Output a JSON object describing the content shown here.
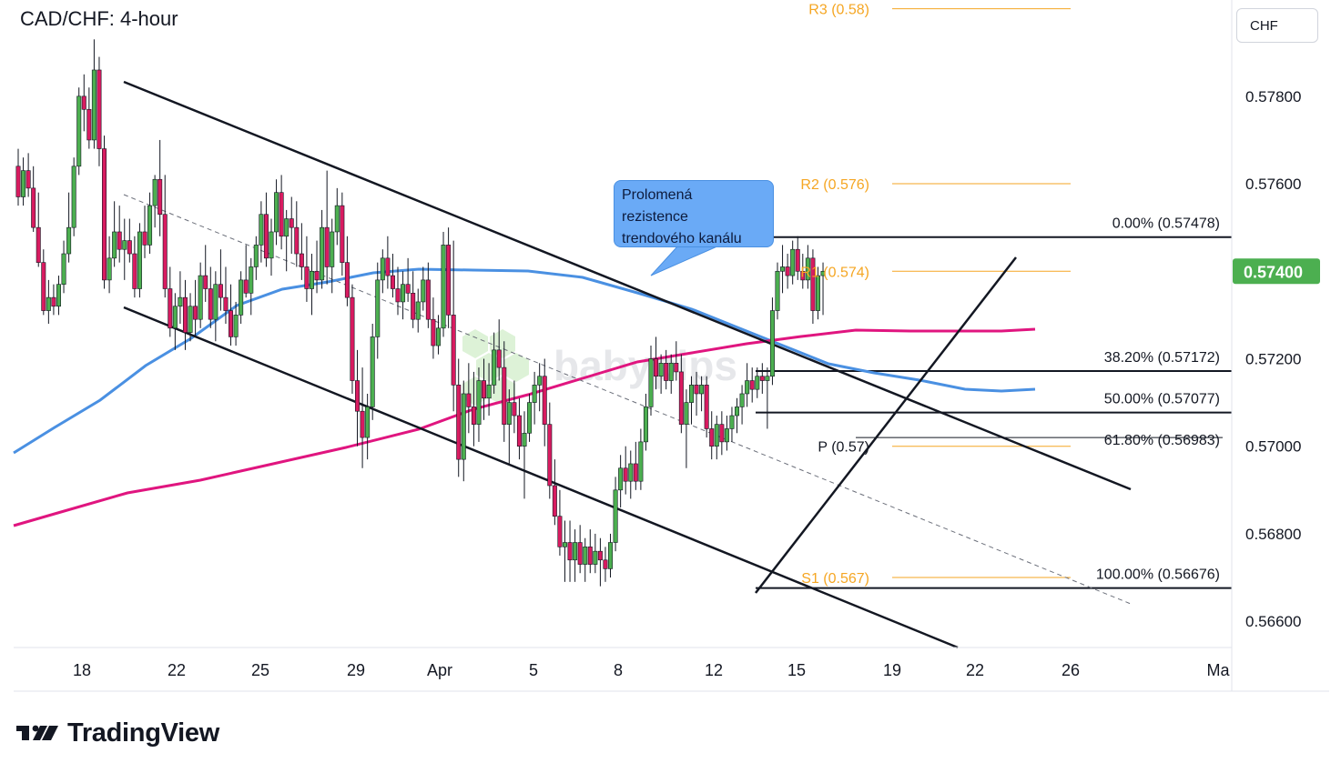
{
  "header": {
    "title": "CAD/CHF: 4-hour"
  },
  "currency_box": {
    "label": "CHF"
  },
  "callout": {
    "lines": [
      "Prolomená",
      "rezistence",
      "trendového kanálu"
    ]
  },
  "brand": {
    "name": "TradingView"
  },
  "watermark": {
    "text": "babypips"
  },
  "colors": {
    "up": "#26a69a",
    "up_fill": "#4caf50",
    "down": "#e91e63",
    "down_fill": "#d81b60",
    "ma_blue": "#4a90e2",
    "ma_pink": "#e0157f",
    "pivot_orange": "#f5a623",
    "fib_line": "#131722",
    "current_price_bg": "#4caf50"
  },
  "chart_data": {
    "type": "candlestick",
    "title": "CAD/CHF: 4-hour",
    "ylim": [
      0.5654,
      0.5802
    ],
    "y_ticks": [
      "0.56600",
      "0.56800",
      "0.57000",
      "0.57200",
      "0.57400",
      "0.57600",
      "0.57800"
    ],
    "x_ticks": [
      "18",
      "22",
      "25",
      "29",
      "Apr",
      "5",
      "8",
      "12",
      "15",
      "19",
      "22",
      "26",
      "Ma"
    ],
    "current_price": "0.57400",
    "pivot_levels": [
      {
        "label": "R3 (0.58)",
        "value": 0.58
      },
      {
        "label": "R2 (0.576)",
        "value": 0.576
      },
      {
        "label": "R1 (0.574)",
        "value": 0.574
      },
      {
        "label": "P (0.57)",
        "value": 0.57
      },
      {
        "label": "S1 (0.567)",
        "value": 0.567
      }
    ],
    "fib_levels": [
      {
        "label": "0.00% (0.57478)",
        "value": 0.57478
      },
      {
        "label": "38.20% (0.57172)",
        "value": 0.57172
      },
      {
        "label": "50.00% (0.57077)",
        "value": 0.57077
      },
      {
        "label": "61.80% (0.56983)",
        "value": 0.56983
      },
      {
        "label": "100.00% (0.56676)",
        "value": 0.56676
      }
    ],
    "candles": [
      {
        "o": 0.5764,
        "h": 0.5768,
        "l": 0.5755,
        "c": 0.5757
      },
      {
        "o": 0.5757,
        "h": 0.5766,
        "l": 0.5755,
        "c": 0.5763
      },
      {
        "o": 0.5763,
        "h": 0.5767,
        "l": 0.5757,
        "c": 0.5759
      },
      {
        "o": 0.5759,
        "h": 0.5764,
        "l": 0.5749,
        "c": 0.575
      },
      {
        "o": 0.575,
        "h": 0.5758,
        "l": 0.5741,
        "c": 0.5742
      },
      {
        "o": 0.5742,
        "h": 0.5745,
        "l": 0.573,
        "c": 0.5731
      },
      {
        "o": 0.5731,
        "h": 0.5738,
        "l": 0.5728,
        "c": 0.5734
      },
      {
        "o": 0.5734,
        "h": 0.5737,
        "l": 0.573,
        "c": 0.5732
      },
      {
        "o": 0.5732,
        "h": 0.5739,
        "l": 0.573,
        "c": 0.5737
      },
      {
        "o": 0.5737,
        "h": 0.5747,
        "l": 0.5735,
        "c": 0.5744
      },
      {
        "o": 0.5744,
        "h": 0.5758,
        "l": 0.5742,
        "c": 0.575
      },
      {
        "o": 0.575,
        "h": 0.5766,
        "l": 0.5748,
        "c": 0.5764
      },
      {
        "o": 0.5764,
        "h": 0.5782,
        "l": 0.5762,
        "c": 0.578
      },
      {
        "o": 0.578,
        "h": 0.5785,
        "l": 0.5772,
        "c": 0.5777
      },
      {
        "o": 0.5777,
        "h": 0.5782,
        "l": 0.5768,
        "c": 0.577
      },
      {
        "o": 0.577,
        "h": 0.5793,
        "l": 0.5768,
        "c": 0.5786
      },
      {
        "o": 0.5786,
        "h": 0.5789,
        "l": 0.5764,
        "c": 0.5768
      },
      {
        "o": 0.5768,
        "h": 0.5771,
        "l": 0.5736,
        "c": 0.5738
      },
      {
        "o": 0.5738,
        "h": 0.5748,
        "l": 0.5735,
        "c": 0.5743
      },
      {
        "o": 0.5743,
        "h": 0.5756,
        "l": 0.5741,
        "c": 0.5749
      },
      {
        "o": 0.5749,
        "h": 0.5755,
        "l": 0.5742,
        "c": 0.5745
      },
      {
        "o": 0.5745,
        "h": 0.5752,
        "l": 0.5738,
        "c": 0.5747
      },
      {
        "o": 0.5747,
        "h": 0.5752,
        "l": 0.5742,
        "c": 0.5744
      },
      {
        "o": 0.5744,
        "h": 0.5748,
        "l": 0.5734,
        "c": 0.5736
      },
      {
        "o": 0.5736,
        "h": 0.5751,
        "l": 0.5734,
        "c": 0.5749
      },
      {
        "o": 0.5749,
        "h": 0.5755,
        "l": 0.5743,
        "c": 0.5746
      },
      {
        "o": 0.5746,
        "h": 0.5758,
        "l": 0.5744,
        "c": 0.5755
      },
      {
        "o": 0.5755,
        "h": 0.5762,
        "l": 0.575,
        "c": 0.5761
      },
      {
        "o": 0.5761,
        "h": 0.577,
        "l": 0.5748,
        "c": 0.5753
      },
      {
        "o": 0.5753,
        "h": 0.5762,
        "l": 0.5734,
        "c": 0.5736
      },
      {
        "o": 0.5736,
        "h": 0.5741,
        "l": 0.5725,
        "c": 0.5727
      },
      {
        "o": 0.5727,
        "h": 0.5735,
        "l": 0.5722,
        "c": 0.5732
      },
      {
        "o": 0.5732,
        "h": 0.574,
        "l": 0.5728,
        "c": 0.5734
      },
      {
        "o": 0.5734,
        "h": 0.5738,
        "l": 0.5722,
        "c": 0.5726
      },
      {
        "o": 0.5726,
        "h": 0.5735,
        "l": 0.5724,
        "c": 0.5732
      },
      {
        "o": 0.5732,
        "h": 0.5738,
        "l": 0.5725,
        "c": 0.5729
      },
      {
        "o": 0.5729,
        "h": 0.5742,
        "l": 0.5727,
        "c": 0.5739
      },
      {
        "o": 0.5739,
        "h": 0.5746,
        "l": 0.5733,
        "c": 0.5736
      },
      {
        "o": 0.5736,
        "h": 0.5741,
        "l": 0.5727,
        "c": 0.5729
      },
      {
        "o": 0.5729,
        "h": 0.574,
        "l": 0.5724,
        "c": 0.5737
      },
      {
        "o": 0.5737,
        "h": 0.5745,
        "l": 0.5731,
        "c": 0.5734
      },
      {
        "o": 0.5734,
        "h": 0.5741,
        "l": 0.5728,
        "c": 0.5731
      },
      {
        "o": 0.5731,
        "h": 0.5737,
        "l": 0.5723,
        "c": 0.5725
      },
      {
        "o": 0.5725,
        "h": 0.5733,
        "l": 0.5723,
        "c": 0.573
      },
      {
        "o": 0.573,
        "h": 0.574,
        "l": 0.5728,
        "c": 0.5738
      },
      {
        "o": 0.5738,
        "h": 0.5746,
        "l": 0.5734,
        "c": 0.5735
      },
      {
        "o": 0.5735,
        "h": 0.5743,
        "l": 0.573,
        "c": 0.5741
      },
      {
        "o": 0.5741,
        "h": 0.5748,
        "l": 0.5738,
        "c": 0.5746
      },
      {
        "o": 0.5746,
        "h": 0.5756,
        "l": 0.5742,
        "c": 0.5753
      },
      {
        "o": 0.5753,
        "h": 0.5758,
        "l": 0.5741,
        "c": 0.5743
      },
      {
        "o": 0.5743,
        "h": 0.5752,
        "l": 0.5739,
        "c": 0.5749
      },
      {
        "o": 0.5749,
        "h": 0.5761,
        "l": 0.5746,
        "c": 0.5758
      },
      {
        "o": 0.5758,
        "h": 0.5762,
        "l": 0.5745,
        "c": 0.5748
      },
      {
        "o": 0.5748,
        "h": 0.5754,
        "l": 0.574,
        "c": 0.5752
      },
      {
        "o": 0.5752,
        "h": 0.5757,
        "l": 0.5744,
        "c": 0.575
      },
      {
        "o": 0.575,
        "h": 0.5756,
        "l": 0.5741,
        "c": 0.5744
      },
      {
        "o": 0.5744,
        "h": 0.5751,
        "l": 0.5738,
        "c": 0.5741
      },
      {
        "o": 0.5741,
        "h": 0.5748,
        "l": 0.5733,
        "c": 0.5736
      },
      {
        "o": 0.5736,
        "h": 0.5744,
        "l": 0.573,
        "c": 0.574
      },
      {
        "o": 0.574,
        "h": 0.5747,
        "l": 0.5735,
        "c": 0.5738
      },
      {
        "o": 0.5738,
        "h": 0.5754,
        "l": 0.5736,
        "c": 0.575
      },
      {
        "o": 0.575,
        "h": 0.5763,
        "l": 0.5737,
        "c": 0.5741
      },
      {
        "o": 0.5741,
        "h": 0.5752,
        "l": 0.5735,
        "c": 0.5749
      },
      {
        "o": 0.5749,
        "h": 0.5759,
        "l": 0.5746,
        "c": 0.5755
      },
      {
        "o": 0.5755,
        "h": 0.5758,
        "l": 0.5739,
        "c": 0.5742
      },
      {
        "o": 0.5742,
        "h": 0.5748,
        "l": 0.5732,
        "c": 0.5734
      },
      {
        "o": 0.5734,
        "h": 0.5737,
        "l": 0.5712,
        "c": 0.5715
      },
      {
        "o": 0.5715,
        "h": 0.5722,
        "l": 0.57,
        "c": 0.5708
      },
      {
        "o": 0.5708,
        "h": 0.5718,
        "l": 0.5695,
        "c": 0.5702
      },
      {
        "o": 0.5702,
        "h": 0.5712,
        "l": 0.5697,
        "c": 0.5709
      },
      {
        "o": 0.5709,
        "h": 0.5728,
        "l": 0.5706,
        "c": 0.5725
      },
      {
        "o": 0.5725,
        "h": 0.5742,
        "l": 0.572,
        "c": 0.5738
      },
      {
        "o": 0.5738,
        "h": 0.5745,
        "l": 0.5735,
        "c": 0.5743
      },
      {
        "o": 0.5743,
        "h": 0.5748,
        "l": 0.5736,
        "c": 0.5739
      },
      {
        "o": 0.5739,
        "h": 0.5744,
        "l": 0.5734,
        "c": 0.5736
      },
      {
        "o": 0.5736,
        "h": 0.5741,
        "l": 0.573,
        "c": 0.5733
      },
      {
        "o": 0.5733,
        "h": 0.574,
        "l": 0.5729,
        "c": 0.5737
      },
      {
        "o": 0.5737,
        "h": 0.5743,
        "l": 0.5733,
        "c": 0.5735
      },
      {
        "o": 0.5735,
        "h": 0.574,
        "l": 0.5727,
        "c": 0.5729
      },
      {
        "o": 0.5729,
        "h": 0.5736,
        "l": 0.5726,
        "c": 0.5733
      },
      {
        "o": 0.5733,
        "h": 0.5741,
        "l": 0.5731,
        "c": 0.5738
      },
      {
        "o": 0.5738,
        "h": 0.5742,
        "l": 0.5727,
        "c": 0.5729
      },
      {
        "o": 0.5729,
        "h": 0.5734,
        "l": 0.572,
        "c": 0.5723
      },
      {
        "o": 0.5723,
        "h": 0.573,
        "l": 0.5721,
        "c": 0.5727
      },
      {
        "o": 0.5727,
        "h": 0.5749,
        "l": 0.5725,
        "c": 0.5746
      },
      {
        "o": 0.5746,
        "h": 0.575,
        "l": 0.5727,
        "c": 0.573
      },
      {
        "o": 0.573,
        "h": 0.5747,
        "l": 0.5708,
        "c": 0.5714
      },
      {
        "o": 0.5714,
        "h": 0.572,
        "l": 0.5693,
        "c": 0.5697
      },
      {
        "o": 0.5697,
        "h": 0.5715,
        "l": 0.5692,
        "c": 0.5712
      },
      {
        "o": 0.5712,
        "h": 0.5719,
        "l": 0.5703,
        "c": 0.5709
      },
      {
        "o": 0.5709,
        "h": 0.5717,
        "l": 0.57,
        "c": 0.5705
      },
      {
        "o": 0.5705,
        "h": 0.5718,
        "l": 0.5701,
        "c": 0.5715
      },
      {
        "o": 0.5715,
        "h": 0.572,
        "l": 0.5706,
        "c": 0.5711
      },
      {
        "o": 0.5711,
        "h": 0.5719,
        "l": 0.5707,
        "c": 0.5714
      },
      {
        "o": 0.5714,
        "h": 0.5726,
        "l": 0.5712,
        "c": 0.5722
      },
      {
        "o": 0.5722,
        "h": 0.5729,
        "l": 0.5715,
        "c": 0.5718
      },
      {
        "o": 0.5718,
        "h": 0.5724,
        "l": 0.5701,
        "c": 0.5705
      },
      {
        "o": 0.5705,
        "h": 0.5713,
        "l": 0.5696,
        "c": 0.571
      },
      {
        "o": 0.571,
        "h": 0.5715,
        "l": 0.5703,
        "c": 0.5707
      },
      {
        "o": 0.5707,
        "h": 0.5711,
        "l": 0.5697,
        "c": 0.57
      },
      {
        "o": 0.57,
        "h": 0.5708,
        "l": 0.5688,
        "c": 0.5703
      },
      {
        "o": 0.5703,
        "h": 0.5712,
        "l": 0.5701,
        "c": 0.571
      },
      {
        "o": 0.571,
        "h": 0.5717,
        "l": 0.5705,
        "c": 0.5714
      },
      {
        "o": 0.5714,
        "h": 0.5719,
        "l": 0.5708,
        "c": 0.5716
      },
      {
        "o": 0.5716,
        "h": 0.572,
        "l": 0.57,
        "c": 0.5705
      },
      {
        "o": 0.5705,
        "h": 0.571,
        "l": 0.5688,
        "c": 0.5691
      },
      {
        "o": 0.5691,
        "h": 0.5697,
        "l": 0.5682,
        "c": 0.5684
      },
      {
        "o": 0.5684,
        "h": 0.569,
        "l": 0.5675,
        "c": 0.5677
      },
      {
        "o": 0.5677,
        "h": 0.5683,
        "l": 0.5669,
        "c": 0.5678
      },
      {
        "o": 0.5678,
        "h": 0.5683,
        "l": 0.5669,
        "c": 0.5674
      },
      {
        "o": 0.5674,
        "h": 0.5681,
        "l": 0.5669,
        "c": 0.5678
      },
      {
        "o": 0.5678,
        "h": 0.5682,
        "l": 0.5671,
        "c": 0.5673
      },
      {
        "o": 0.5673,
        "h": 0.5679,
        "l": 0.5669,
        "c": 0.5677
      },
      {
        "o": 0.5677,
        "h": 0.5681,
        "l": 0.5671,
        "c": 0.5673
      },
      {
        "o": 0.5673,
        "h": 0.568,
        "l": 0.5671,
        "c": 0.5676
      },
      {
        "o": 0.5676,
        "h": 0.5679,
        "l": 0.5668,
        "c": 0.5674
      },
      {
        "o": 0.5674,
        "h": 0.5677,
        "l": 0.5669,
        "c": 0.5672
      },
      {
        "o": 0.5672,
        "h": 0.568,
        "l": 0.567,
        "c": 0.5678
      },
      {
        "o": 0.5678,
        "h": 0.5693,
        "l": 0.5676,
        "c": 0.569
      },
      {
        "o": 0.569,
        "h": 0.5698,
        "l": 0.5686,
        "c": 0.5695
      },
      {
        "o": 0.5695,
        "h": 0.57,
        "l": 0.5689,
        "c": 0.5692
      },
      {
        "o": 0.5692,
        "h": 0.5699,
        "l": 0.5688,
        "c": 0.5696
      },
      {
        "o": 0.5696,
        "h": 0.5701,
        "l": 0.569,
        "c": 0.5692
      },
      {
        "o": 0.5692,
        "h": 0.5704,
        "l": 0.569,
        "c": 0.5701
      },
      {
        "o": 0.5701,
        "h": 0.5712,
        "l": 0.5699,
        "c": 0.5709
      },
      {
        "o": 0.5709,
        "h": 0.5723,
        "l": 0.5707,
        "c": 0.572
      },
      {
        "o": 0.572,
        "h": 0.5725,
        "l": 0.5713,
        "c": 0.5716
      },
      {
        "o": 0.5716,
        "h": 0.5721,
        "l": 0.5712,
        "c": 0.5719
      },
      {
        "o": 0.5719,
        "h": 0.5722,
        "l": 0.5713,
        "c": 0.5715
      },
      {
        "o": 0.5715,
        "h": 0.5721,
        "l": 0.5712,
        "c": 0.5719
      },
      {
        "o": 0.5719,
        "h": 0.5724,
        "l": 0.5715,
        "c": 0.5717
      },
      {
        "o": 0.5717,
        "h": 0.5721,
        "l": 0.5703,
        "c": 0.5705
      },
      {
        "o": 0.5705,
        "h": 0.5713,
        "l": 0.5695,
        "c": 0.571
      },
      {
        "o": 0.571,
        "h": 0.5716,
        "l": 0.5705,
        "c": 0.5714
      },
      {
        "o": 0.5714,
        "h": 0.5717,
        "l": 0.5707,
        "c": 0.5712
      },
      {
        "o": 0.5712,
        "h": 0.5716,
        "l": 0.5708,
        "c": 0.5714
      },
      {
        "o": 0.5714,
        "h": 0.5716,
        "l": 0.5702,
        "c": 0.5704
      },
      {
        "o": 0.5704,
        "h": 0.5708,
        "l": 0.5697,
        "c": 0.57
      },
      {
        "o": 0.57,
        "h": 0.5707,
        "l": 0.5697,
        "c": 0.5705
      },
      {
        "o": 0.5705,
        "h": 0.5708,
        "l": 0.5698,
        "c": 0.5701
      },
      {
        "o": 0.5701,
        "h": 0.5707,
        "l": 0.5699,
        "c": 0.5704
      },
      {
        "o": 0.5704,
        "h": 0.5709,
        "l": 0.5701,
        "c": 0.5707
      },
      {
        "o": 0.5707,
        "h": 0.5711,
        "l": 0.5703,
        "c": 0.5709
      },
      {
        "o": 0.5709,
        "h": 0.5714,
        "l": 0.5705,
        "c": 0.5712
      },
      {
        "o": 0.5712,
        "h": 0.5719,
        "l": 0.5709,
        "c": 0.5715
      },
      {
        "o": 0.5715,
        "h": 0.5718,
        "l": 0.571,
        "c": 0.5713
      },
      {
        "o": 0.5713,
        "h": 0.5718,
        "l": 0.5711,
        "c": 0.5716
      },
      {
        "o": 0.5716,
        "h": 0.5719,
        "l": 0.5712,
        "c": 0.5715
      },
      {
        "o": 0.5715,
        "h": 0.5718,
        "l": 0.5704,
        "c": 0.5716
      },
      {
        "o": 0.5716,
        "h": 0.5734,
        "l": 0.5714,
        "c": 0.5731
      },
      {
        "o": 0.5731,
        "h": 0.5742,
        "l": 0.5729,
        "c": 0.574
      },
      {
        "o": 0.574,
        "h": 0.5746,
        "l": 0.5735,
        "c": 0.5741
      },
      {
        "o": 0.5741,
        "h": 0.5744,
        "l": 0.5736,
        "c": 0.5739
      },
      {
        "o": 0.5739,
        "h": 0.5747,
        "l": 0.5737,
        "c": 0.5745
      },
      {
        "o": 0.5745,
        "h": 0.5748,
        "l": 0.5738,
        "c": 0.574
      },
      {
        "o": 0.574,
        "h": 0.5744,
        "l": 0.5736,
        "c": 0.5738
      },
      {
        "o": 0.5738,
        "h": 0.5746,
        "l": 0.5736,
        "c": 0.5743
      },
      {
        "o": 0.5743,
        "h": 0.5745,
        "l": 0.5728,
        "c": 0.5731
      },
      {
        "o": 0.5731,
        "h": 0.5741,
        "l": 0.5729,
        "c": 0.5739
      },
      {
        "o": 0.5739,
        "h": 0.5742,
        "l": 0.573,
        "c": 0.574
      }
    ]
  }
}
